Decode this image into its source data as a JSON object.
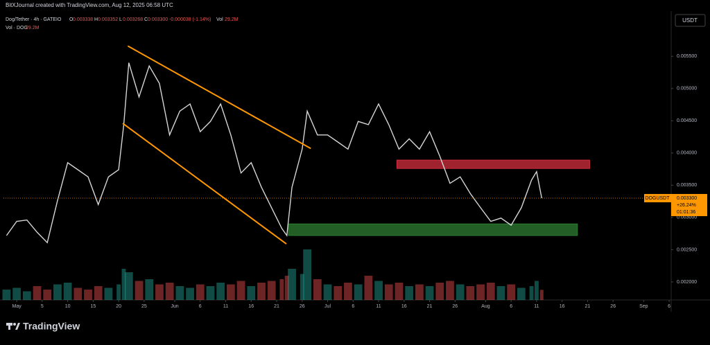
{
  "header": {
    "credit": "BitXJournal created with TradingView.com, Aug 12, 2025 06:58 UTC",
    "symbol": "Dog/Tether · 4h · GATEIO",
    "ohlc": [
      {
        "label": "O",
        "value": "0.003338"
      },
      {
        "label": "H",
        "value": "0.003352"
      },
      {
        "label": "L",
        "value": "0.003268"
      },
      {
        "label": "C",
        "value": "0.003300"
      }
    ],
    "change": "-0.000038 (-1.14%)",
    "vol_label": "Vol",
    "vol": "29.2M",
    "vol_study": "Vol · DOG",
    "vol_study_value": "29.2M",
    "currency": "USDT",
    "brand": "TradingView"
  },
  "chart_data": {
    "type": "line",
    "color": "#d6d6d6",
    "up_color": "#26a69a",
    "down_color": "#ef5350",
    "x": [
      -2,
      0,
      2,
      4,
      6,
      8,
      10,
      12,
      14,
      16,
      18,
      20,
      21,
      22,
      24,
      26,
      28,
      30,
      32,
      34,
      36,
      38,
      40,
      42,
      44,
      46,
      48,
      50,
      52,
      53,
      54,
      56,
      57,
      59,
      61,
      63,
      65,
      67,
      69,
      71,
      73,
      75,
      77,
      79,
      81,
      83,
      85,
      87,
      89,
      91,
      93,
      95,
      97,
      99,
      101,
      102,
      103
    ],
    "values": [
      0.00272,
      0.00294,
      0.00296,
      0.00277,
      0.00261,
      0.00326,
      0.00385,
      0.00374,
      0.00363,
      0.0032,
      0.00363,
      0.00374,
      0.00444,
      0.0054,
      0.00487,
      0.00535,
      0.00508,
      0.00428,
      0.00465,
      0.00476,
      0.00433,
      0.00449,
      0.00476,
      0.00428,
      0.00369,
      0.00385,
      0.00347,
      0.00315,
      0.00283,
      0.00272,
      0.00347,
      0.00406,
      0.00465,
      0.00428,
      0.00428,
      0.00417,
      0.00406,
      0.00449,
      0.00444,
      0.00476,
      0.00444,
      0.00406,
      0.00422,
      0.00406,
      0.00433,
      0.00395,
      0.00353,
      0.00363,
      0.00337,
      0.00315,
      0.00294,
      0.00299,
      0.00288,
      0.00315,
      0.00358,
      0.00371,
      0.0033
    ],
    "volume": [
      30,
      35,
      25,
      40,
      30,
      45,
      50,
      35,
      30,
      40,
      35,
      45,
      90,
      80,
      55,
      60,
      45,
      50,
      40,
      35,
      45,
      40,
      50,
      45,
      55,
      40,
      50,
      55,
      60,
      70,
      90,
      75,
      146,
      60,
      45,
      40,
      50,
      45,
      70,
      55,
      45,
      50,
      40,
      45,
      40,
      50,
      55,
      45,
      40,
      45,
      50,
      40,
      45,
      35,
      40,
      55,
      29.2
    ],
    "vlim": [
      0,
      200
    ],
    "xlim": [
      -2.6,
      128.4
    ],
    "ylim": [
      0.00172,
      0.00618
    ],
    "xticks": [
      {
        "value": 0,
        "label": "May"
      },
      5,
      10,
      15,
      20,
      25,
      {
        "value": 31,
        "label": "Jun"
      },
      {
        "value": 36,
        "label": "6"
      },
      {
        "value": 41,
        "label": "11"
      },
      {
        "value": 46,
        "label": "16"
      },
      {
        "value": 51,
        "label": "21"
      },
      {
        "value": 56,
        "label": "26"
      },
      {
        "value": 61,
        "label": "Jul"
      },
      {
        "value": 66,
        "label": "6"
      },
      {
        "value": 71,
        "label": "11"
      },
      {
        "value": 76,
        "label": "16"
      },
      {
        "value": 81,
        "label": "21"
      },
      {
        "value": 86,
        "label": "26"
      },
      {
        "value": 92,
        "label": "Aug"
      },
      {
        "value": 97,
        "label": "6"
      },
      {
        "value": 102,
        "label": "11"
      },
      {
        "value": 107,
        "label": "16"
      },
      {
        "value": 112,
        "label": "21"
      },
      {
        "value": 117,
        "label": "26"
      },
      {
        "value": 123,
        "label": "Sep"
      },
      {
        "value": 128,
        "label": "6"
      }
    ],
    "yticks": [
      {
        "value": 0.0055,
        "label": "0.005500"
      },
      {
        "value": 0.005,
        "label": "0.005000"
      },
      {
        "value": 0.0045,
        "label": "0.004500"
      },
      {
        "value": 0.004,
        "label": "0.004000"
      },
      {
        "value": 0.0035,
        "label": "0.003500"
      },
      {
        "value": 0.003,
        "label": "0.003000"
      },
      {
        "value": 0.0025,
        "label": "0.002500"
      },
      {
        "value": 0.002,
        "label": "0.002000"
      }
    ],
    "last_price": {
      "value": 0.0033,
      "label": "0.003300",
      "ticker": "DOGUSDT",
      "change": "+26.24%",
      "countdown": "01:01:36",
      "color": "#ff9800"
    },
    "zones": [
      {
        "x": [
          74.6,
          112.4
        ],
        "top": 0.00389,
        "bottom": 0.00376,
        "color": "#d32f3f"
      },
      {
        "x": [
          53.3,
          110
        ],
        "top": 0.0029,
        "bottom": 0.00272,
        "color": "#2e7d32"
      }
    ],
    "trendlines": [
      {
        "x": [
          21.8,
          57.7
        ],
        "y": [
          0.00566,
          0.00407
        ],
        "color": "#ff9800"
      },
      {
        "x": [
          20.8,
          52.9
        ],
        "y": [
          0.00446,
          0.00259
        ],
        "color": "#ff9800"
      }
    ]
  }
}
